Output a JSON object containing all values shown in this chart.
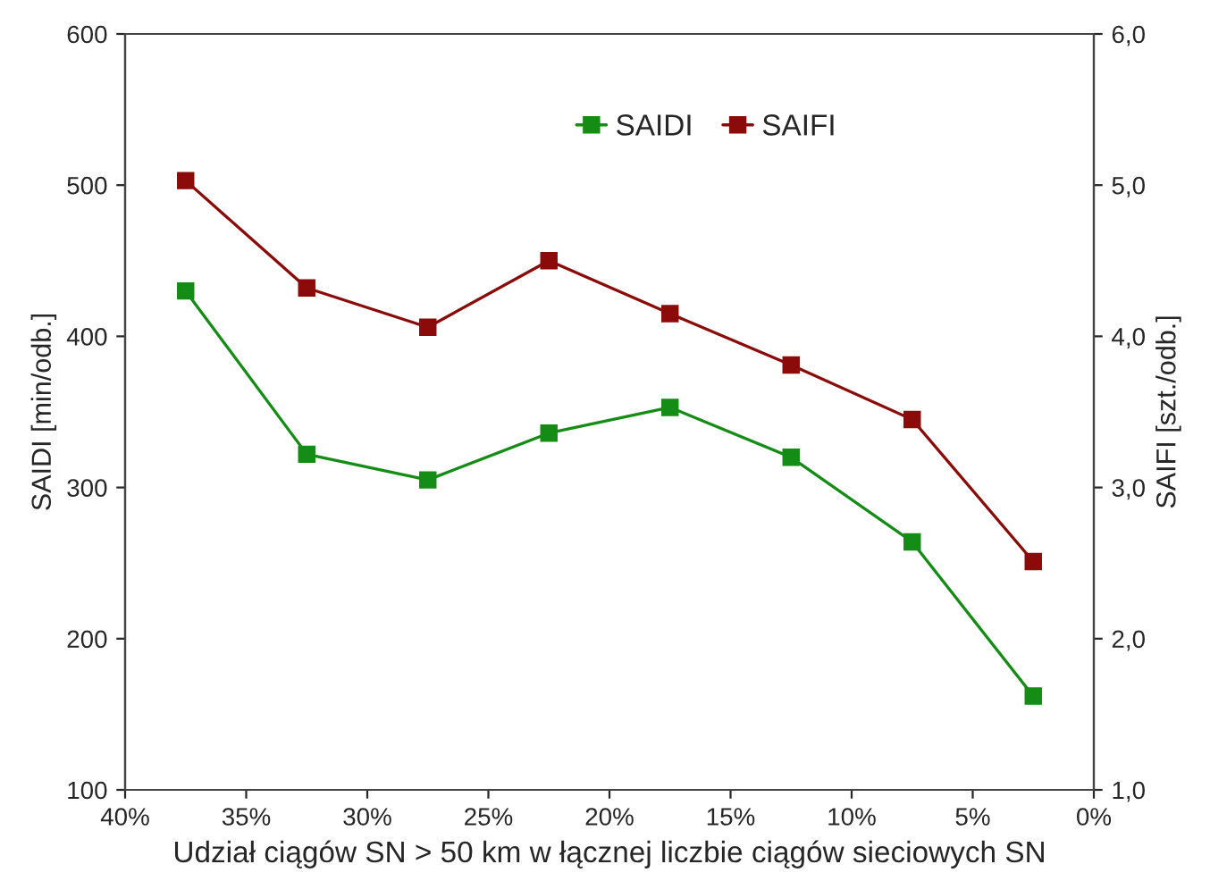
{
  "chart_data": {
    "type": "line",
    "xlabel": "Udział ciągów SN > 50 km w łącznej liczbie ciągów sieciowych SN",
    "ylabel": "SAIDI [min/odb.]",
    "y2label": "SAIFI [szt./odb.]",
    "x": [
      37.5,
      32.5,
      27.5,
      22.5,
      17.5,
      12.5,
      7.5,
      2.5
    ],
    "series": [
      {
        "name": "SAIDI",
        "color": "#158c15",
        "values": [
          430,
          322,
          305,
          336,
          353,
          320,
          264,
          162
        ]
      },
      {
        "name": "SAIFI",
        "color": "#8b0a0a",
        "axis": "y2",
        "values": [
          5.03,
          4.32,
          4.06,
          4.5,
          4.15,
          3.81,
          3.45,
          2.51
        ]
      }
    ],
    "xlim": [
      40,
      0
    ],
    "xticks": [
      {
        "value": 40,
        "label": "40%"
      },
      {
        "value": 35,
        "label": "35%"
      },
      {
        "value": 30,
        "label": "30%"
      },
      {
        "value": 25,
        "label": "25%"
      },
      {
        "value": 20,
        "label": "20%"
      },
      {
        "value": 15,
        "label": "15%"
      },
      {
        "value": 10,
        "label": "10%"
      },
      {
        "value": 5,
        "label": "5%"
      },
      {
        "value": 0,
        "label": "0%"
      }
    ],
    "ylim": [
      100,
      600
    ],
    "yticks": [
      100,
      200,
      300,
      400,
      500,
      600
    ],
    "y2lim": [
      1,
      6
    ],
    "y2ticks": [
      {
        "value": 1,
        "label": "1,0"
      },
      {
        "value": 2,
        "label": "2,0"
      },
      {
        "value": 3,
        "label": "3,0"
      },
      {
        "value": 4,
        "label": "4,0"
      },
      {
        "value": 5,
        "label": "5,0"
      },
      {
        "value": 6,
        "label": "6,0"
      }
    ],
    "marker": "square",
    "line_style": "solid",
    "grid": false,
    "legend": "top"
  }
}
